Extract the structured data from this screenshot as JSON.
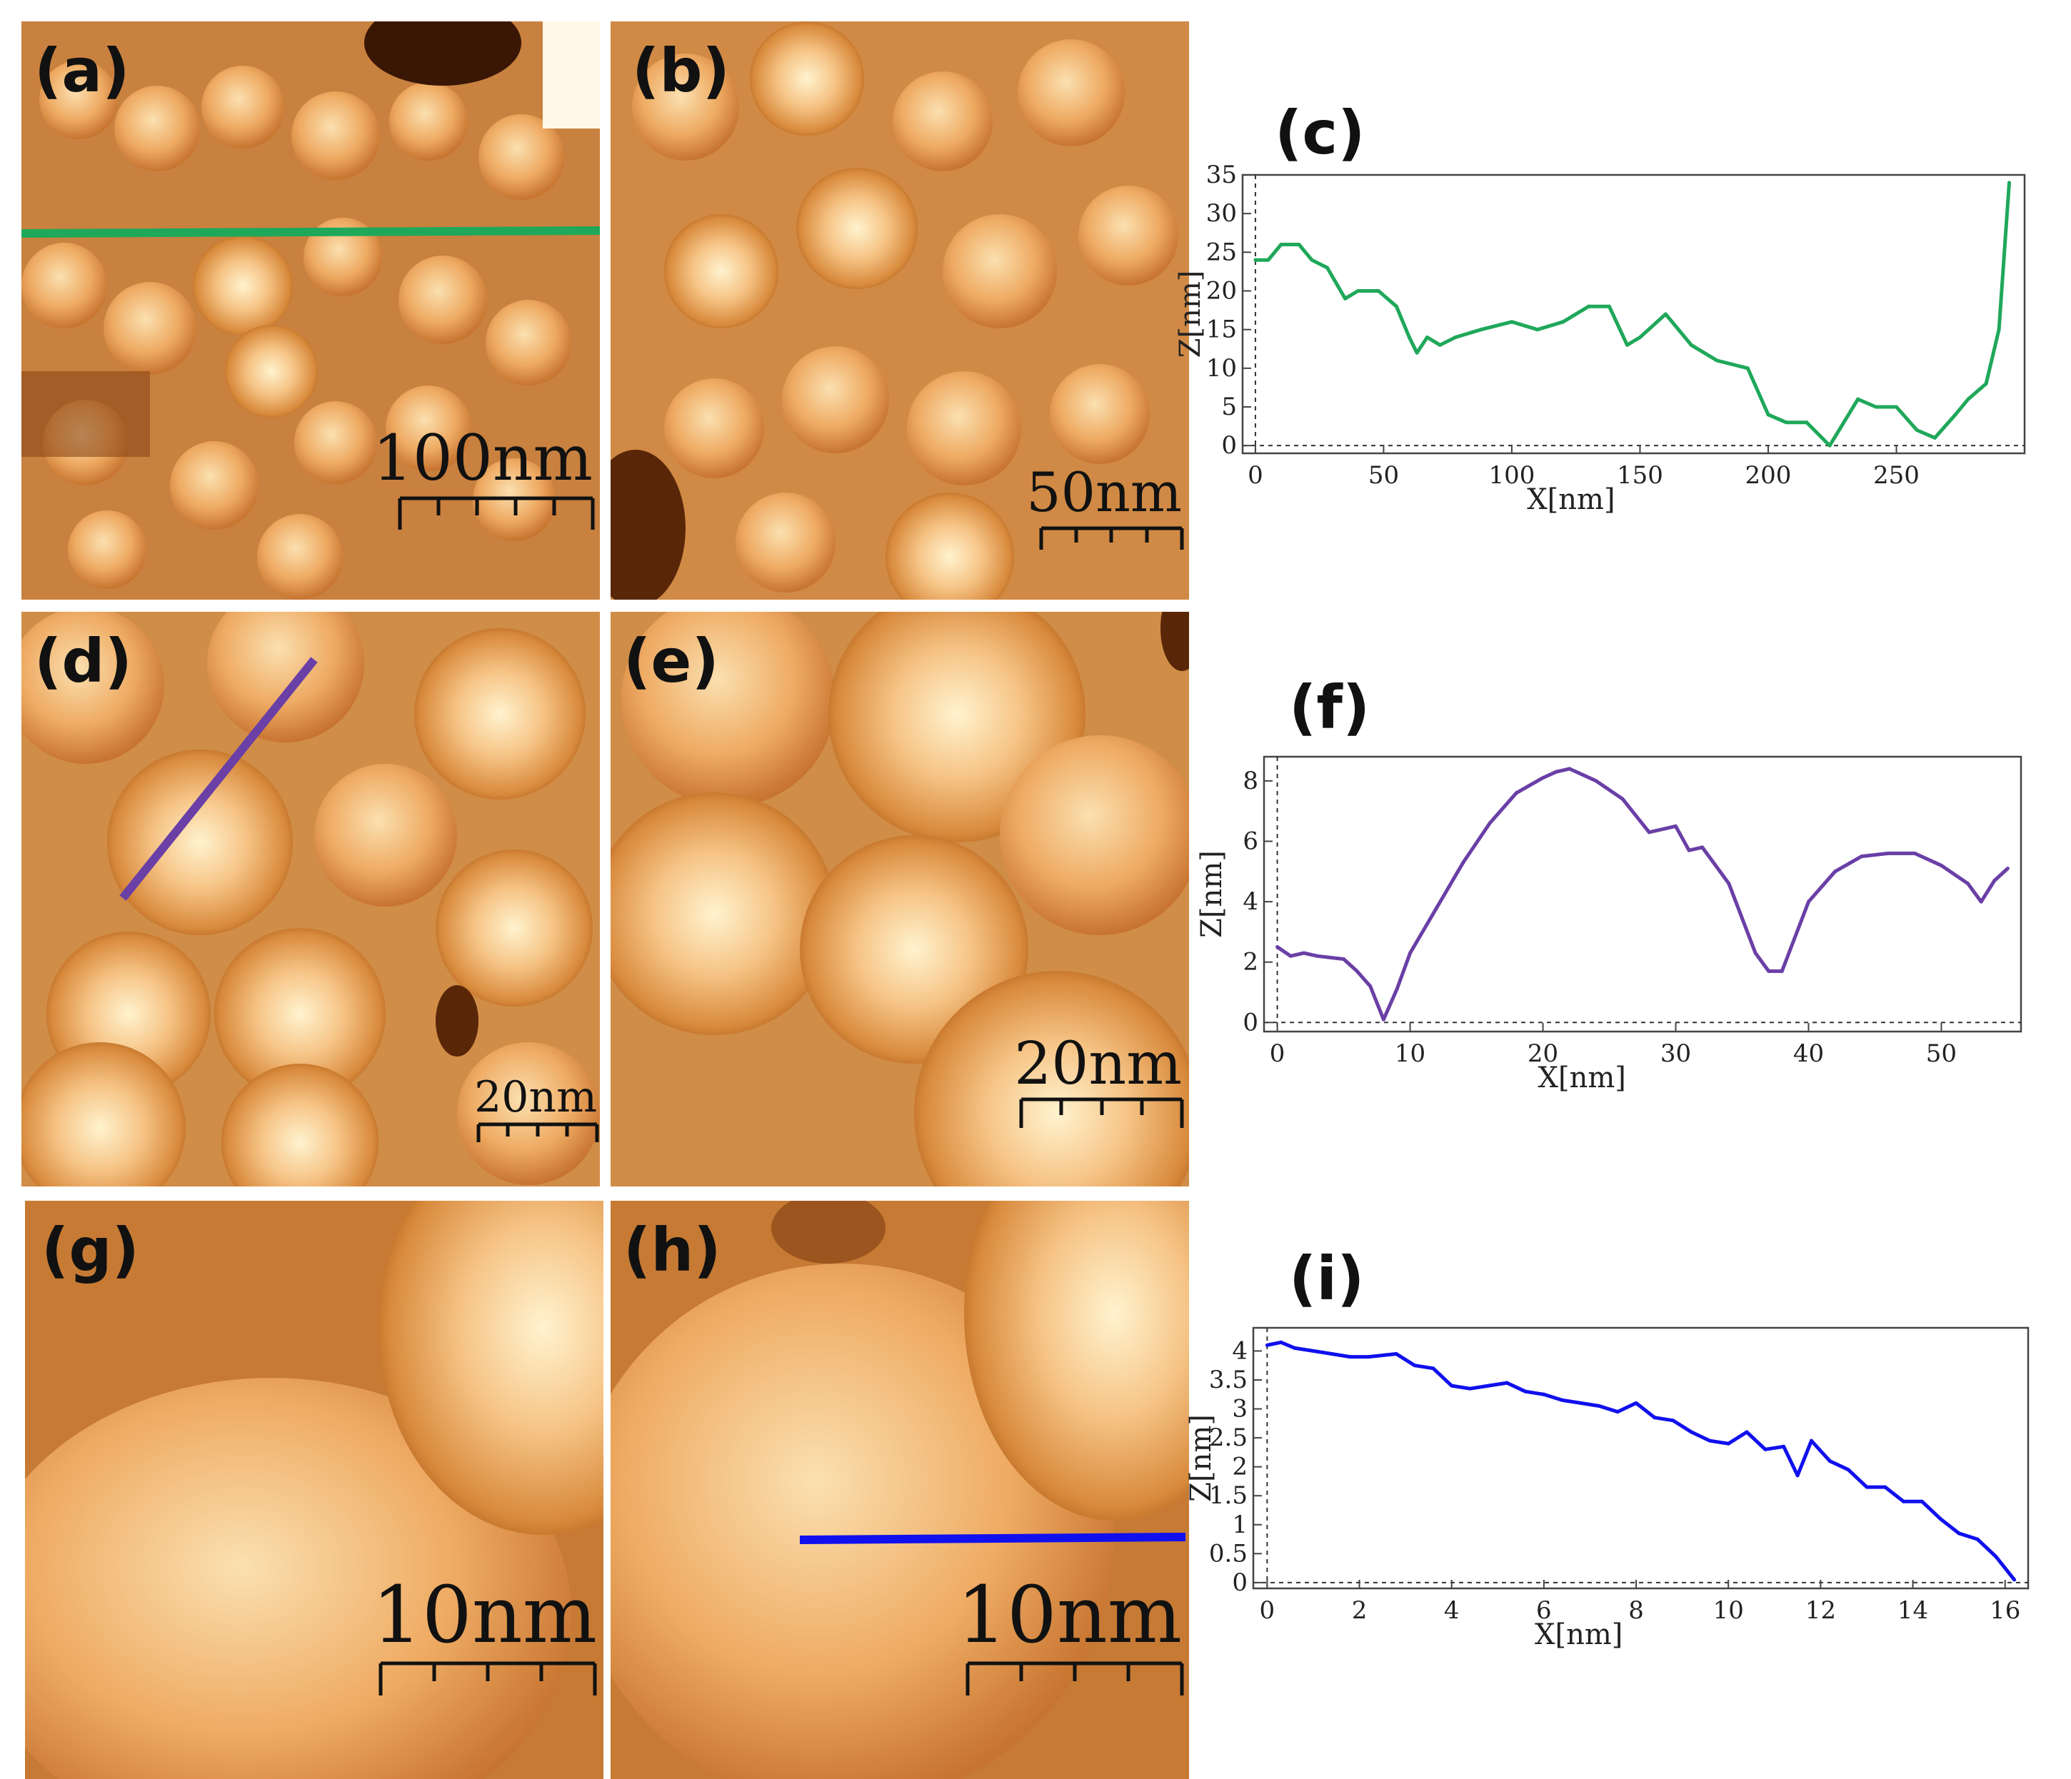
{
  "panels": [
    {
      "label": "(a)",
      "scale_bar": "100nm",
      "line_color": "#1fa85a"
    },
    {
      "label": "(b)",
      "scale_bar": "50nm"
    },
    {
      "label": "(d)",
      "scale_bar": "20nm",
      "line_color": "#6a3fa6"
    },
    {
      "label": "(e)",
      "scale_bar": "20nm"
    },
    {
      "label": "(g)",
      "scale_bar": "10nm"
    },
    {
      "label": "(h)",
      "scale_bar": "10nm",
      "line_color": "#1010ee"
    }
  ],
  "chart_data": [
    {
      "panel_label": "(c)",
      "type": "line",
      "color": "#1fa85a",
      "xlabel": "X[nm]",
      "ylabel": "Z[nm]",
      "xlim": [
        -5,
        300
      ],
      "ylim": [
        -1,
        35
      ],
      "xticks": [
        0,
        50,
        100,
        150,
        200,
        250
      ],
      "yticks": [
        0,
        5,
        10,
        15,
        20,
        25,
        30,
        35
      ],
      "x": [
        0,
        5,
        10,
        17,
        22,
        28,
        35,
        40,
        48,
        55,
        60,
        63,
        67,
        72,
        78,
        88,
        100,
        110,
        120,
        130,
        138,
        145,
        150,
        160,
        170,
        180,
        192,
        200,
        207,
        215,
        224,
        235,
        242,
        250,
        258,
        265,
        273,
        278,
        285,
        290,
        294
      ],
      "y": [
        24,
        24,
        26,
        26,
        24,
        23,
        19,
        20,
        20,
        18,
        14,
        12,
        14,
        13,
        14,
        15,
        16,
        15,
        16,
        18,
        18,
        13,
        14,
        17,
        13,
        11,
        10,
        4,
        3,
        3,
        0,
        6,
        5,
        5,
        2,
        1,
        4,
        6,
        8,
        15,
        34
      ]
    },
    {
      "panel_label": "(f)",
      "type": "line",
      "color": "#6a3fa6",
      "xlabel": "X[nm]",
      "ylabel": "Z[nm]",
      "xlim": [
        -1,
        56
      ],
      "ylim": [
        -0.3,
        8.8
      ],
      "xticks": [
        0,
        10,
        20,
        30,
        40,
        50
      ],
      "yticks": [
        0,
        2,
        4,
        6,
        8
      ],
      "x": [
        0,
        1,
        2,
        3,
        5,
        6,
        7,
        8,
        9,
        10,
        12,
        14,
        16,
        18,
        20,
        21,
        22,
        24,
        26,
        28,
        30,
        31,
        32,
        34,
        36,
        37,
        38,
        40,
        42,
        44,
        46,
        48,
        50,
        52,
        53,
        54,
        55
      ],
      "y": [
        2.5,
        2.2,
        2.3,
        2.2,
        2.1,
        1.7,
        1.2,
        0.1,
        1.1,
        2.3,
        3.8,
        5.3,
        6.6,
        7.6,
        8.1,
        8.3,
        8.4,
        8.0,
        7.4,
        6.3,
        6.5,
        5.7,
        5.8,
        4.6,
        2.3,
        1.7,
        1.7,
        4.0,
        5.0,
        5.5,
        5.6,
        5.6,
        5.2,
        4.6,
        4.0,
        4.7,
        5.1
      ]
    },
    {
      "panel_label": "(i)",
      "type": "line",
      "color": "#1010ee",
      "xlabel": "X[nm]",
      "ylabel": "Z[nm]",
      "xlim": [
        -0.3,
        16.5
      ],
      "ylim": [
        -0.1,
        4.4
      ],
      "xticks": [
        0,
        2,
        4,
        6,
        8,
        10,
        12,
        14,
        16
      ],
      "yticks": [
        0,
        0.5,
        1,
        1.5,
        2,
        2.5,
        3,
        3.5,
        4
      ],
      "ytick_labels": [
        "0",
        "0.5",
        "1",
        "1.5",
        "2",
        "2.5",
        "3",
        "3.5",
        "4"
      ],
      "x": [
        0,
        0.3,
        0.6,
        1.0,
        1.4,
        1.8,
        2.2,
        2.8,
        3.2,
        3.6,
        4.0,
        4.4,
        4.8,
        5.2,
        5.6,
        6.0,
        6.4,
        6.8,
        7.2,
        7.6,
        8.0,
        8.4,
        8.8,
        9.2,
        9.6,
        10.0,
        10.4,
        10.8,
        11.2,
        11.5,
        11.8,
        12.2,
        12.6,
        13.0,
        13.4,
        13.8,
        14.2,
        14.6,
        15.0,
        15.4,
        15.8,
        16.2
      ],
      "y": [
        4.1,
        4.15,
        4.05,
        4.0,
        3.95,
        3.9,
        3.9,
        3.95,
        3.75,
        3.7,
        3.4,
        3.35,
        3.4,
        3.45,
        3.3,
        3.25,
        3.15,
        3.1,
        3.05,
        2.95,
        3.1,
        2.85,
        2.8,
        2.6,
        2.45,
        2.4,
        2.6,
        2.3,
        2.35,
        1.85,
        2.45,
        2.1,
        1.95,
        1.65,
        1.65,
        1.4,
        1.4,
        1.1,
        0.85,
        0.75,
        0.45,
        0.05
      ]
    }
  ]
}
